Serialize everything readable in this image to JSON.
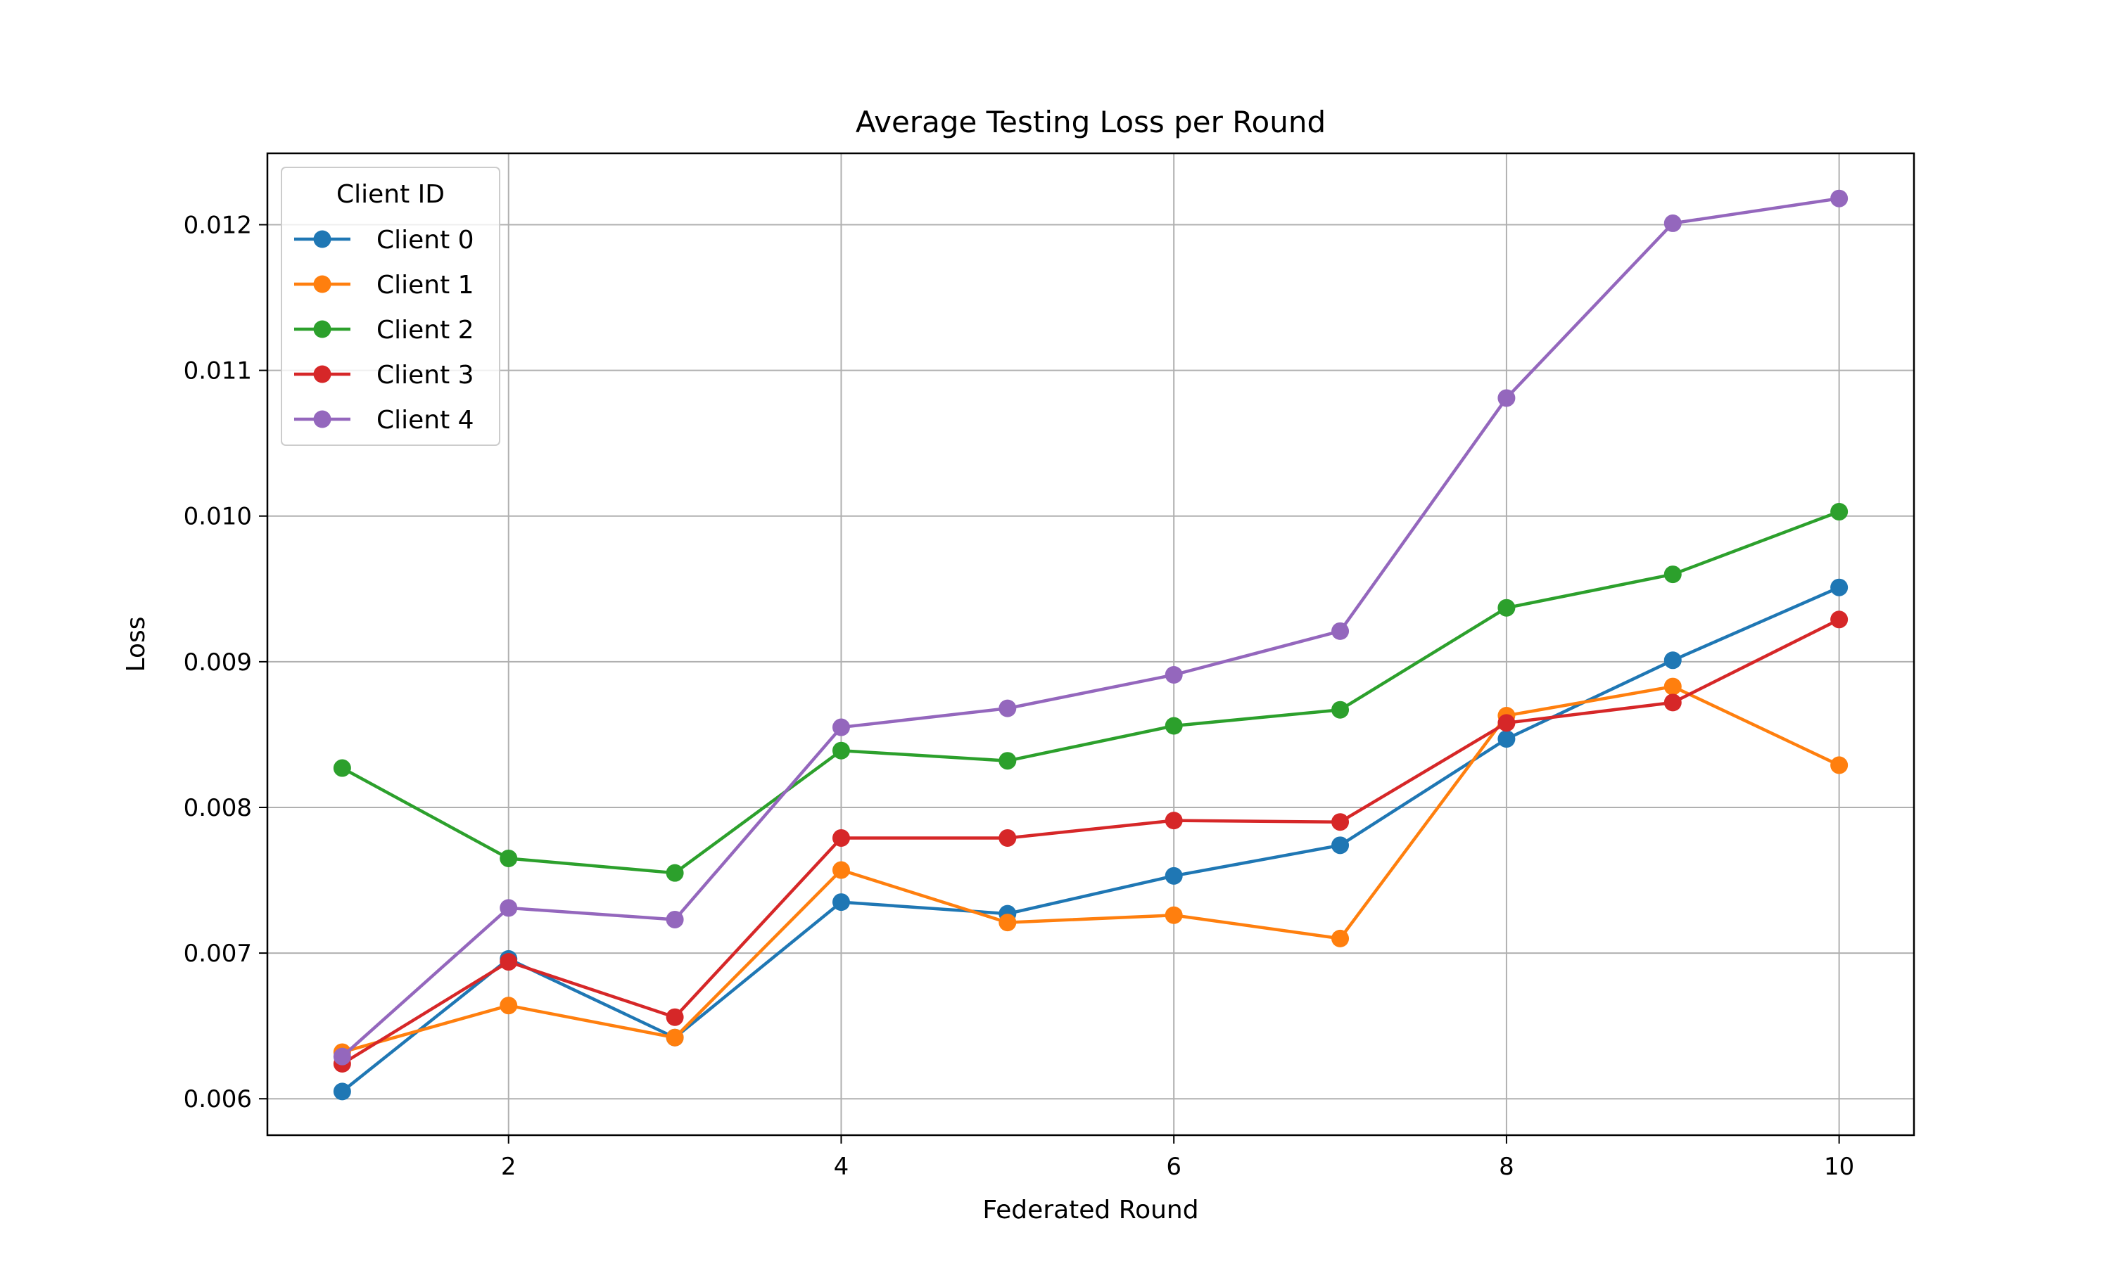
{
  "chart_data": {
    "type": "line",
    "title": "Average Testing Loss per Round",
    "xlabel": "Federated Round",
    "ylabel": "Loss",
    "xlim": [
      0.55,
      10.45
    ],
    "ylim": [
      0.00575,
      0.01249
    ],
    "xticks": [
      2,
      4,
      6,
      8,
      10
    ],
    "xtick_labels": [
      "2",
      "4",
      "6",
      "8",
      "10"
    ],
    "yticks": [
      0.006,
      0.007,
      0.008,
      0.009,
      0.01,
      0.011,
      0.012
    ],
    "ytick_labels": [
      "0.006",
      "0.007",
      "0.008",
      "0.009",
      "0.010",
      "0.011",
      "0.012"
    ],
    "grid": true,
    "legend_title": "Client ID",
    "legend_position": "upper-left",
    "x": [
      1,
      2,
      3,
      4,
      5,
      6,
      7,
      8,
      9,
      10
    ],
    "series": [
      {
        "name": "Client 0",
        "color": "#1f77b4",
        "values": [
          0.00605,
          0.00696,
          0.00642,
          0.00735,
          0.00727,
          0.00753,
          0.00774,
          0.00847,
          0.00901,
          0.00951
        ]
      },
      {
        "name": "Client 1",
        "color": "#ff7f0e",
        "values": [
          0.00632,
          0.00664,
          0.00642,
          0.00757,
          0.00721,
          0.00726,
          0.0071,
          0.00863,
          0.00883,
          0.00829
        ]
      },
      {
        "name": "Client 2",
        "color": "#2ca02c",
        "values": [
          0.00827,
          0.00765,
          0.00755,
          0.00839,
          0.00832,
          0.00856,
          0.00867,
          0.00937,
          0.0096,
          0.01003
        ]
      },
      {
        "name": "Client 3",
        "color": "#d62728",
        "values": [
          0.00624,
          0.00694,
          0.00656,
          0.00779,
          0.00779,
          0.00791,
          0.0079,
          0.00858,
          0.00872,
          0.00929
        ]
      },
      {
        "name": "Client 4",
        "color": "#9467bd",
        "values": [
          0.00629,
          0.00731,
          0.00723,
          0.00855,
          0.00868,
          0.00891,
          0.00921,
          0.01081,
          0.01201,
          0.01218
        ]
      }
    ]
  }
}
